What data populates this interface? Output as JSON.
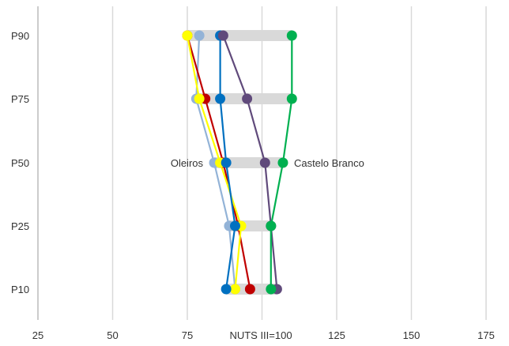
{
  "chart_data": {
    "type": "line",
    "orientation": "horizontal-values",
    "xlabel": "NUTS III=100",
    "xlim": [
      25,
      175
    ],
    "x_ticks": [
      25,
      50,
      75,
      100,
      125,
      150,
      175
    ],
    "grid": true,
    "categories": [
      "P90",
      "P75",
      "P50",
      "P25",
      "P10"
    ],
    "annotations": [
      {
        "text": "Oleiros",
        "x": 84,
        "category": "P50",
        "side": "left"
      },
      {
        "text": "Castelo Branco",
        "x": 107,
        "category": "P50",
        "side": "right"
      }
    ],
    "range_bars": [
      {
        "category": "P90",
        "min": 75,
        "max": 110
      },
      {
        "category": "P75",
        "min": 78,
        "max": 110
      },
      {
        "category": "P50",
        "min": 84,
        "max": 107
      },
      {
        "category": "P25",
        "min": 89,
        "max": 103
      },
      {
        "category": "P10",
        "min": 88,
        "max": 105
      }
    ],
    "series": [
      {
        "color": "#93b3d7",
        "values": [
          79,
          78,
          84,
          89,
          91
        ]
      },
      {
        "color": "#c00000",
        "values": [
          75,
          81,
          87,
          92,
          96
        ]
      },
      {
        "color": "#ffff00",
        "values": [
          75,
          79,
          86,
          93,
          91
        ]
      },
      {
        "color": "#0070c0",
        "values": [
          86,
          86,
          88,
          91,
          88
        ]
      },
      {
        "color": "#604a7b",
        "values": [
          87,
          95,
          101,
          103,
          105
        ]
      },
      {
        "color": "#00b050",
        "values": [
          110,
          110,
          107,
          103,
          103
        ]
      }
    ]
  }
}
